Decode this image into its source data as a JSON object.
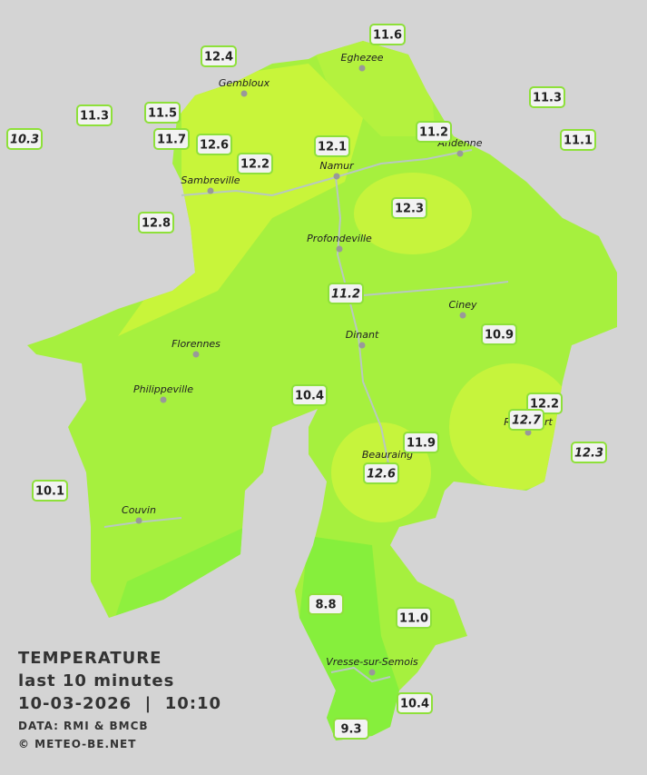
{
  "legend": {
    "title": "TEMPERATURE",
    "period": "last 10 minutes",
    "datetime": "10-03-2026  |  10:10",
    "source": "DATA: RMI & BMCB",
    "credit": "© METEO-BE.NET"
  },
  "cities": [
    "Eghezee",
    "Gembloux",
    "Andenne",
    "Namur",
    "Sambreville",
    "Profondeville",
    "Ciney",
    "Dinant",
    "Florennes",
    "Philippeville",
    "Rochefort",
    "Beauraing",
    "Couvin",
    "Vresse-sur-Semois"
  ],
  "stations": [
    {
      "value": "12.4"
    },
    {
      "value": "11.6"
    },
    {
      "value": "11.3"
    },
    {
      "value": "11.5"
    },
    {
      "value": "11.3"
    },
    {
      "value": "10.3",
      "italic": true
    },
    {
      "value": "11.7"
    },
    {
      "value": "12.6"
    },
    {
      "value": "11.2"
    },
    {
      "value": "11.1"
    },
    {
      "value": "12.1"
    },
    {
      "value": "12.2"
    },
    {
      "value": "12.3"
    },
    {
      "value": "12.8"
    },
    {
      "value": "11.2",
      "italic": true
    },
    {
      "value": "10.9"
    },
    {
      "value": "10.4"
    },
    {
      "value": "12.2"
    },
    {
      "value": "12.7",
      "italic": true
    },
    {
      "value": "12.3",
      "italic": true
    },
    {
      "value": "11.9"
    },
    {
      "value": "12.6",
      "italic": true
    },
    {
      "value": "10.1"
    },
    {
      "value": "8.8"
    },
    {
      "value": "11.0"
    },
    {
      "value": "10.4"
    },
    {
      "value": "9.3"
    }
  ]
}
